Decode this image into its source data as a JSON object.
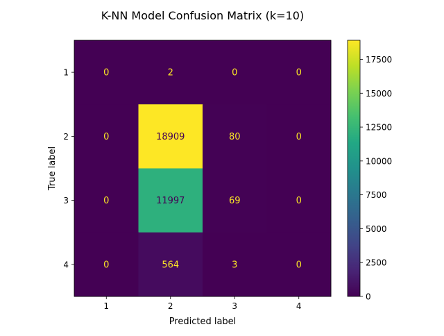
{
  "chart_data": {
    "type": "heatmap",
    "title": "K-NN Model Confusion Matrix (k=10)",
    "xlabel": "Predicted label",
    "ylabel": "True label",
    "x_categories": [
      "1",
      "2",
      "3",
      "4"
    ],
    "y_categories": [
      "1",
      "2",
      "3",
      "4"
    ],
    "matrix": [
      [
        0,
        2,
        0,
        0
      ],
      [
        0,
        18909,
        80,
        0
      ],
      [
        0,
        11997,
        69,
        0
      ],
      [
        0,
        564,
        3,
        0
      ]
    ],
    "colormap": "viridis",
    "colorbar": {
      "range": [
        0,
        18909
      ],
      "ticks": [
        0,
        2500,
        5000,
        7500,
        10000,
        12500,
        15000,
        17500
      ]
    },
    "grid": false
  }
}
